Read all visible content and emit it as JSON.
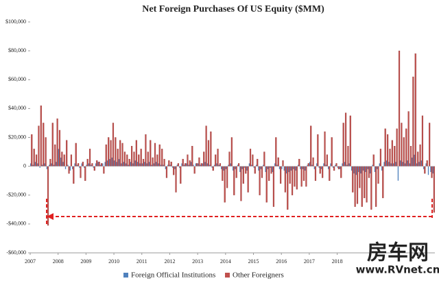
{
  "chart_data": {
    "type": "bar",
    "title": "Net Foreign Purchases Of US Equity ($MM)",
    "watermark": "房车网",
    "watermark_url": "www.RVnet.cn",
    "categories": [
      "2007",
      null,
      null,
      null,
      null,
      null,
      null,
      null,
      null,
      null,
      null,
      null,
      "2008",
      null,
      null,
      null,
      null,
      null,
      null,
      null,
      null,
      null,
      null,
      null,
      "2009",
      null,
      null,
      null,
      null,
      null,
      null,
      null,
      null,
      null,
      null,
      null,
      "2010",
      null,
      null,
      null,
      null,
      null,
      null,
      null,
      null,
      null,
      null,
      null,
      "2011",
      null,
      null,
      null,
      null,
      null,
      null,
      null,
      null,
      null,
      null,
      null,
      "2012",
      null,
      null,
      null,
      null,
      null,
      null,
      null,
      null,
      null,
      null,
      null,
      "2013",
      null,
      null,
      null,
      null,
      null,
      null,
      null,
      null,
      null,
      null,
      null,
      "2014",
      null,
      null,
      null,
      null,
      null,
      null,
      null,
      null,
      null,
      null,
      null,
      "2015",
      null,
      null,
      null,
      null,
      null,
      null,
      null,
      null,
      null,
      null,
      null,
      "2016",
      null,
      null,
      null,
      null,
      null,
      null,
      null,
      null,
      null,
      null,
      null,
      "2017",
      null,
      null,
      null,
      null,
      null,
      null,
      null,
      null,
      null,
      null,
      null,
      "2018",
      null,
      null,
      null,
      null,
      null,
      null,
      null,
      null,
      null,
      null,
      null,
      null,
      null,
      null,
      null,
      null,
      null,
      null,
      null,
      null,
      null,
      null,
      null,
      null,
      null,
      null,
      null,
      null,
      null,
      null,
      null,
      null,
      null,
      null,
      null,
      null,
      null,
      null,
      null,
      null,
      null
    ],
    "series": [
      {
        "name": "Foreign Official Institutions",
        "color": "#4f81bd",
        "values": [
          2000,
          1000,
          3000,
          2000,
          -1000,
          1000,
          2000,
          -2000,
          1000,
          2000,
          1000,
          3000,
          12000,
          6000,
          3000,
          -2000,
          1000,
          -3000,
          -2000,
          2000,
          1000,
          -1000,
          2000,
          -1000,
          1000,
          2000,
          1000,
          -1000,
          2000,
          3000,
          1000,
          2000,
          3000,
          4000,
          5000,
          6000,
          4000,
          3000,
          5000,
          2000,
          3000,
          2000,
          1000,
          3000,
          2000,
          4000,
          3000,
          2000,
          2000,
          3000,
          2000,
          3000,
          1000,
          2000,
          3000,
          2000,
          1000,
          1000,
          -2000,
          1000,
          1000,
          -1000,
          -2000,
          1000,
          -1000,
          2000,
          1000,
          2000,
          1000,
          3000,
          1000,
          2000,
          2000,
          1000,
          2000,
          3000,
          2000,
          1000,
          -1000,
          1000,
          2000,
          1000,
          -2000,
          -3000,
          -2000,
          1000,
          2000,
          -3000,
          -2000,
          1000,
          -4000,
          -2000,
          -1000,
          -3000,
          2000,
          1000,
          -1000,
          1000,
          -3000,
          -2000,
          1000,
          -4000,
          -2000,
          -1000,
          -4000,
          2000,
          1000,
          -2000,
          -2000,
          -3000,
          -5000,
          -4000,
          -3000,
          -2000,
          -3000,
          1000,
          -2000,
          -2000,
          -3000,
          1000,
          3000,
          1000,
          -2000,
          2000,
          -1000,
          -2000,
          2000,
          1000,
          -2000,
          2000,
          -1000,
          1000,
          -1000,
          -2000,
          2000,
          3000,
          1000,
          2000,
          -3000,
          -5000,
          -6000,
          -4000,
          -5000,
          -3000,
          -4000,
          -2000,
          -5000,
          1000,
          -4000,
          -2000,
          2000,
          -3000,
          3000,
          4000,
          3000,
          2000,
          2000,
          3000,
          -10000,
          4000,
          3000,
          2000,
          4000,
          2000,
          6000,
          8000,
          2000,
          3000,
          4000,
          -2000,
          2000,
          -6000,
          -4000,
          -5000
        ]
      },
      {
        "name": "Other Foreigners",
        "color": "#c0504d",
        "values": [
          22000,
          12000,
          8000,
          28000,
          42000,
          30000,
          20000,
          -41000,
          5000,
          30000,
          15000,
          33000,
          25000,
          10000,
          8000,
          18000,
          -5000,
          8000,
          -12000,
          16000,
          2000,
          -8000,
          3000,
          -10000,
          5000,
          12000,
          2000,
          -3000,
          4000,
          3000,
          2000,
          -5000,
          15000,
          20000,
          18000,
          30000,
          20000,
          12000,
          18000,
          16000,
          10000,
          8000,
          5000,
          14000,
          10000,
          18000,
          8000,
          12000,
          5000,
          22000,
          10000,
          18000,
          6000,
          16000,
          8000,
          15000,
          12000,
          5000,
          -8000,
          4000,
          3000,
          -6000,
          -18000,
          2000,
          -12000,
          5000,
          2000,
          8000,
          4000,
          14000,
          -5000,
          2000,
          6000,
          2000,
          10000,
          28000,
          18000,
          24000,
          -3000,
          8000,
          12000,
          2000,
          -10000,
          -25000,
          -15000,
          10000,
          20000,
          -20000,
          -8000,
          2000,
          -24000,
          -12000,
          -5000,
          -18000,
          12000,
          8000,
          -5000,
          5000,
          -20000,
          -8000,
          10000,
          -25000,
          -10000,
          -5000,
          -28000,
          20000,
          6000,
          -12000,
          4000,
          -18000,
          -30000,
          -12000,
          -20000,
          -14000,
          -16000,
          5000,
          -14000,
          -10000,
          -14000,
          2000,
          28000,
          6000,
          -10000,
          22000,
          -5000,
          -8000,
          24000,
          8000,
          -10000,
          20000,
          -3000,
          2000,
          -2000,
          -8000,
          30000,
          37000,
          14000,
          35000,
          -18000,
          -28000,
          -26000,
          -15000,
          -28000,
          -22000,
          -25000,
          -8000,
          -30000,
          8000,
          -28000,
          -12000,
          12000,
          -22000,
          26000,
          22000,
          12000,
          18000,
          14000,
          26000,
          80000,
          30000,
          20000,
          26000,
          38000,
          14000,
          62000,
          78000,
          10000,
          15000,
          35000,
          -5000,
          4000,
          30000,
          -8000,
          -32000
        ]
      }
    ],
    "ylim": [
      -60000,
      100000
    ],
    "yticks": [
      {
        "value": -60000,
        "label": "-$60,000"
      },
      {
        "value": -40000,
        "label": "-$40,000"
      },
      {
        "value": -20000,
        "label": "-$20,000"
      },
      0,
      {
        "value": 20000,
        "label": "$20,000"
      },
      {
        "value": 40000,
        "label": "$40,000"
      },
      {
        "value": 60000,
        "label": "$60,000"
      },
      {
        "value": 80000,
        "label": "$80,000"
      },
      {
        "value": 100000,
        "label": "$100,000"
      }
    ],
    "legend": "bottom"
  }
}
